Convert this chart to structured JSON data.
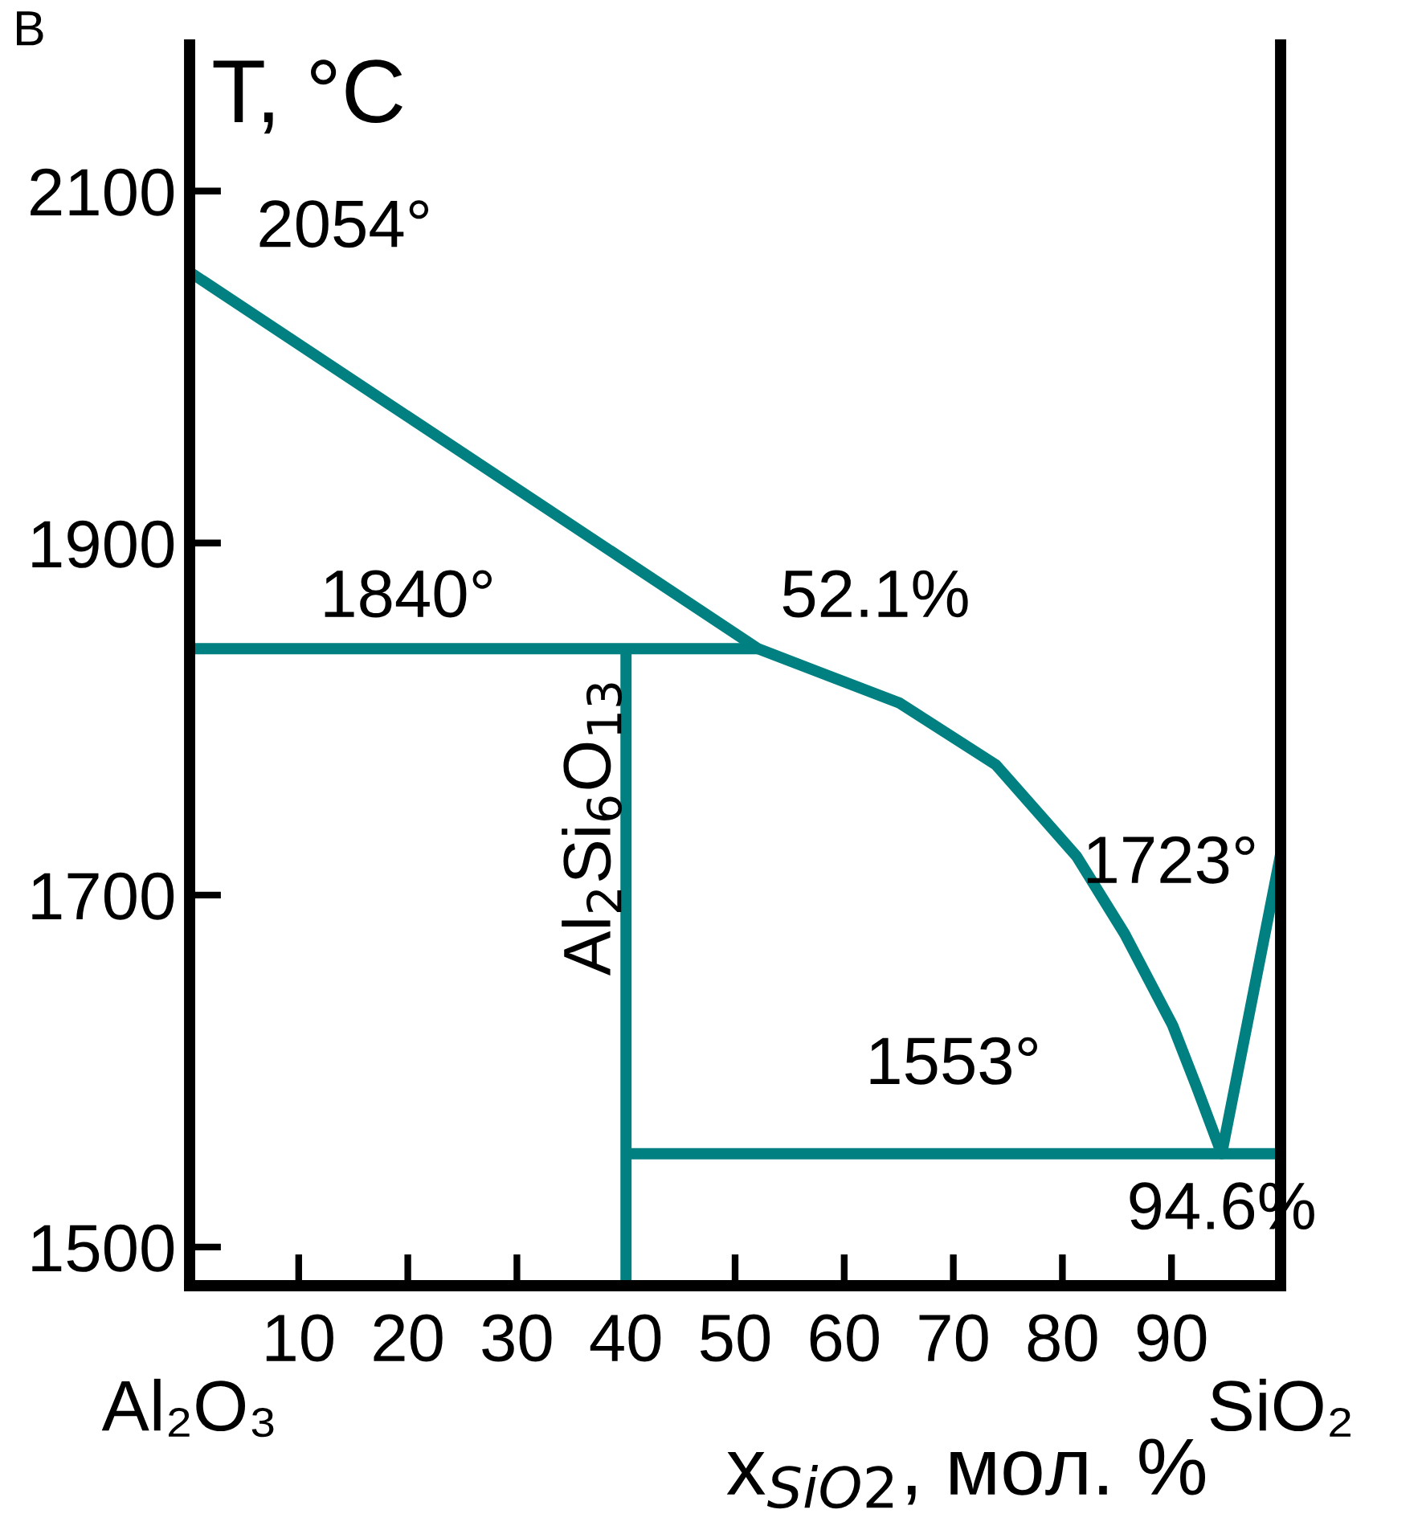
{
  "chart_data": {
    "type": "line",
    "ylabel": "T, °C",
    "xlabel": "x$_{SiO2}$, мол. %",
    "xlim": [
      0,
      100
    ],
    "ylim": [
      1478,
      2183
    ],
    "xticks": [
      10,
      20,
      30,
      40,
      50,
      60,
      70,
      80,
      90
    ],
    "yticks": [
      1500,
      1700,
      1900,
      2100
    ],
    "grid": false,
    "legend": false,
    "marker": "none",
    "line_style": "solid",
    "series": [
      {
        "color": "#008080",
        "x": [
          0,
          52.1,
          65.1,
          73.9,
          81.3,
          85.7,
          90.1,
          92.3,
          94.6,
          100
        ],
        "values": [
          2054,
          1840,
          1809,
          1774,
          1722,
          1678,
          1626,
          1591,
          1553,
          1723
        ]
      },
      {
        "color": "#008080",
        "x": [
          0,
          52.1
        ],
        "values": [
          1840,
          1840
        ]
      },
      {
        "color": "#008080",
        "x": [
          40,
          40
        ],
        "values": [
          1478,
          1840
        ]
      },
      {
        "color": "#008080",
        "x": [
          40,
          100
        ],
        "values": [
          1553,
          1553
        ]
      }
    ],
    "annotations": [
      {
        "text": "2054°",
        "x": 0,
        "y": 2054
      },
      {
        "text": "1840°",
        "x": 20,
        "y": 1840
      },
      {
        "text": "52.1%",
        "x": 52.1,
        "y": 1840
      },
      {
        "text": "1723°",
        "x": 100,
        "y": 1723
      },
      {
        "text": "1553°",
        "x": 70,
        "y": 1553
      },
      {
        "text": "94.6%",
        "x": 94.6,
        "y": 1553
      },
      "Al$_{2}$Si$_{6}$O$_{13}$",
      "В",
      "Al₂O₃",
      "SiO₂"
    ]
  }
}
